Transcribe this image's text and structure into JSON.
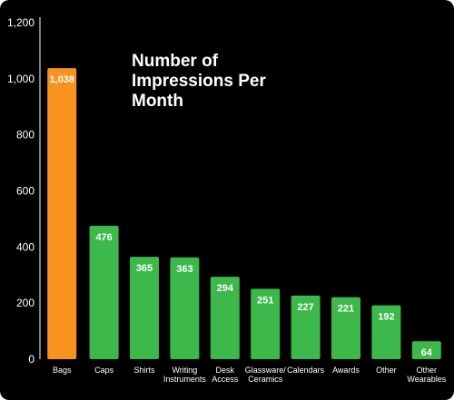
{
  "chart_data": {
    "type": "bar",
    "title_lines": [
      "Number of",
      "Impressions Per",
      "Month"
    ],
    "xlabel": "",
    "ylabel": "",
    "ylim": [
      0,
      1200
    ],
    "yticks": [
      "0",
      "200",
      "400",
      "600",
      "800",
      "1,000",
      "1,200"
    ],
    "ytick_values": [
      0,
      200,
      400,
      600,
      800,
      1000,
      1200
    ],
    "categories": [
      [
        "Bags"
      ],
      [
        "Caps"
      ],
      [
        "Shirts"
      ],
      [
        "Writing",
        "Instruments"
      ],
      [
        "Desk",
        "Access"
      ],
      [
        "Glassware/",
        "Ceramics"
      ],
      [
        "Calendars"
      ],
      [
        "Awards"
      ],
      [
        "Other"
      ],
      [
        "Other",
        "Wearables"
      ]
    ],
    "values": [
      1038,
      476,
      365,
      363,
      294,
      251,
      227,
      221,
      192,
      64
    ],
    "value_labels": [
      "1,038",
      "476",
      "365",
      "363",
      "294",
      "251",
      "227",
      "221",
      "192",
      "64"
    ],
    "highlight_index": 0,
    "colors": {
      "background": "#000000",
      "bar": "#3db84a",
      "highlight": "#f7931e",
      "text": "#ffffff"
    },
    "grid": false,
    "legend": "none"
  }
}
